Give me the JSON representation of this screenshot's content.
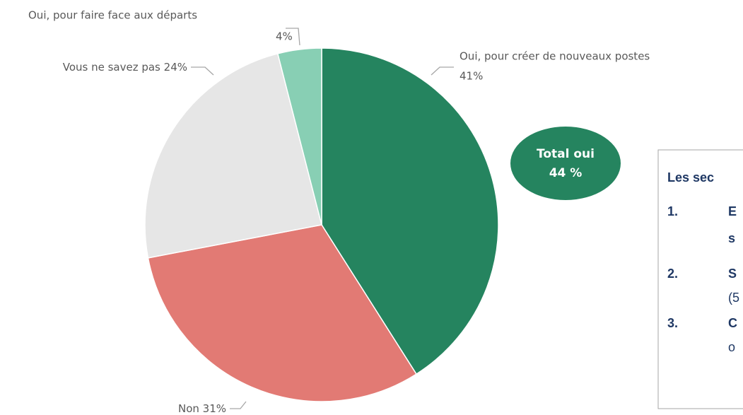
{
  "chart_data": {
    "type": "pie",
    "categories": [
      "Oui, pour créer de nouveaux postes",
      "Non",
      "Vous ne savez pas",
      "Oui, pour faire face aux départs"
    ],
    "values": [
      41,
      31,
      24,
      4
    ],
    "value_labels": [
      "41%",
      "31%",
      "24%",
      "4%"
    ],
    "colors": [
      "#25845f",
      "#e27a74",
      "#e6e6e6",
      "#88cfb4"
    ],
    "annotation": {
      "line1": "Total oui",
      "line2": "44 %"
    },
    "side_box": {
      "title": "Les sec",
      "items": [
        {
          "number": "1.",
          "lines": [
            "E",
            "s"
          ]
        },
        {
          "number": "2.",
          "lines": [
            "S",
            "(5"
          ]
        },
        {
          "number": "3.",
          "lines": [
            "C",
            "o"
          ]
        }
      ]
    }
  }
}
